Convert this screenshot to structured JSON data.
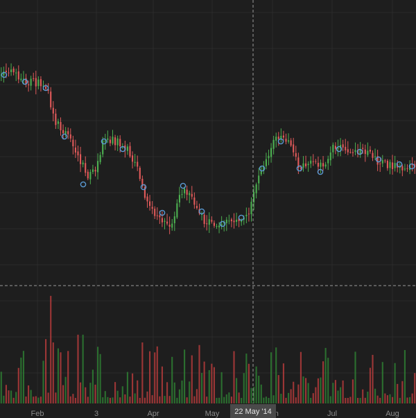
{
  "chart_data": {
    "type": "candlestick",
    "x_tick_labels": [
      "Feb",
      "3",
      "Apr",
      "May",
      "Jun",
      "Jul",
      "Aug"
    ],
    "crosshair_label": "22 May '14",
    "colors": {
      "background": "#1e1e1e",
      "grid": "#2b2b2b",
      "up": "#4caf50",
      "down": "#e05a5a",
      "volume_up": "#2e7d32",
      "volume_down": "#b23b3b",
      "marker": "#5b9bd5",
      "crosshair": "#9a9a9a",
      "axis_text": "#8c8c8c"
    },
    "price_anchors": [
      [
        0,
        108
      ],
      [
        0.03,
        104
      ],
      [
        0.06,
        118
      ],
      [
        0.09,
        120
      ],
      [
        0.11,
        126
      ],
      [
        0.13,
        175
      ],
      [
        0.16,
        195
      ],
      [
        0.19,
        230
      ],
      [
        0.21,
        255
      ],
      [
        0.23,
        245
      ],
      [
        0.25,
        198
      ],
      [
        0.28,
        205
      ],
      [
        0.31,
        218
      ],
      [
        0.33,
        245
      ],
      [
        0.35,
        285
      ],
      [
        0.37,
        310
      ],
      [
        0.39,
        315
      ],
      [
        0.41,
        335
      ],
      [
        0.43,
        278
      ],
      [
        0.45,
        275
      ],
      [
        0.47,
        298
      ],
      [
        0.49,
        318
      ],
      [
        0.52,
        323
      ],
      [
        0.55,
        318
      ],
      [
        0.58,
        314
      ],
      [
        0.6,
        305
      ],
      [
        0.62,
        255
      ],
      [
        0.64,
        230
      ],
      [
        0.66,
        198
      ],
      [
        0.68,
        200
      ],
      [
        0.7,
        205
      ],
      [
        0.72,
        242
      ],
      [
        0.74,
        240
      ],
      [
        0.76,
        232
      ],
      [
        0.78,
        245
      ],
      [
        0.8,
        212
      ],
      [
        0.83,
        215
      ],
      [
        0.86,
        218
      ],
      [
        0.89,
        222
      ],
      [
        0.91,
        232
      ],
      [
        0.94,
        238
      ],
      [
        0.97,
        240
      ],
      [
        1,
        242
      ]
    ],
    "marker_points": [
      [
        0.01,
        108
      ],
      [
        0.06,
        118
      ],
      [
        0.11,
        127
      ],
      [
        0.155,
        197
      ],
      [
        0.2,
        266
      ],
      [
        0.25,
        204
      ],
      [
        0.295,
        215
      ],
      [
        0.345,
        270
      ],
      [
        0.39,
        307
      ],
      [
        0.44,
        268
      ],
      [
        0.485,
        305
      ],
      [
        0.535,
        323
      ],
      [
        0.58,
        314
      ],
      [
        0.63,
        243
      ],
      [
        0.675,
        204
      ],
      [
        0.72,
        243
      ],
      [
        0.77,
        248
      ],
      [
        0.815,
        215
      ],
      [
        0.865,
        219
      ],
      [
        0.91,
        230
      ],
      [
        0.96,
        237
      ],
      [
        0.99,
        240
      ]
    ]
  }
}
